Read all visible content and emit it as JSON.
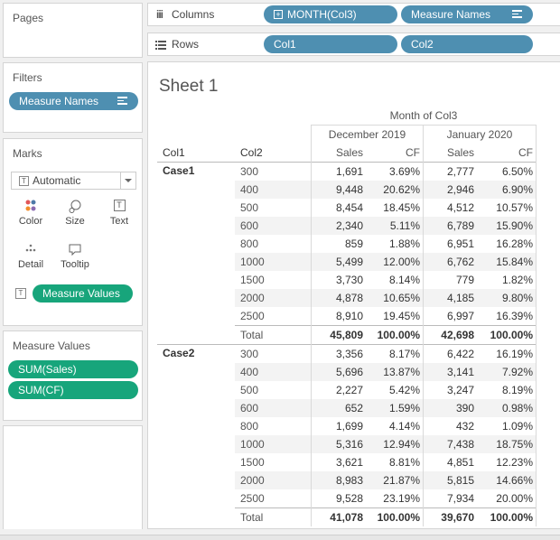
{
  "left": {
    "pages_title": "Pages",
    "filters_title": "Filters",
    "filter_pill": "Measure Names",
    "marks_title": "Marks",
    "mark_type": "Automatic",
    "mark_buttons": [
      "Color",
      "Size",
      "Text",
      "Detail",
      "Tooltip"
    ],
    "marks_pill": "Measure Values",
    "measure_values_title": "Measure Values",
    "measure_pills": [
      "SUM(Sales)",
      "SUM(CF)"
    ]
  },
  "shelves": {
    "columns_label": "Columns",
    "rows_label": "Rows",
    "columns_pills": [
      "MONTH(Col3)",
      "Measure Names"
    ],
    "rows_pills": [
      "Col1",
      "Col2"
    ]
  },
  "sheet": {
    "title": "Sheet 1",
    "col_header_top": "Month of Col3",
    "months": [
      "December 2019",
      "January 2020"
    ],
    "row_headers": [
      "Col1",
      "Col2"
    ],
    "measure_headers": [
      "Sales",
      "CF",
      "Sales",
      "CF"
    ],
    "groups": [
      {
        "name": "Case1",
        "rows": [
          [
            "300",
            "1,691",
            "3.69%",
            "2,777",
            "6.50%"
          ],
          [
            "400",
            "9,448",
            "20.62%",
            "2,946",
            "6.90%"
          ],
          [
            "500",
            "8,454",
            "18.45%",
            "4,512",
            "10.57%"
          ],
          [
            "600",
            "2,340",
            "5.11%",
            "6,789",
            "15.90%"
          ],
          [
            "800",
            "859",
            "1.88%",
            "6,951",
            "16.28%"
          ],
          [
            "1000",
            "5,499",
            "12.00%",
            "6,762",
            "15.84%"
          ],
          [
            "1500",
            "3,730",
            "8.14%",
            "779",
            "1.82%"
          ],
          [
            "2000",
            "4,878",
            "10.65%",
            "4,185",
            "9.80%"
          ],
          [
            "2500",
            "8,910",
            "19.45%",
            "6,997",
            "16.39%"
          ]
        ],
        "total": [
          "Total",
          "45,809",
          "100.00%",
          "42,698",
          "100.00%"
        ]
      },
      {
        "name": "Case2",
        "rows": [
          [
            "300",
            "3,356",
            "8.17%",
            "6,422",
            "16.19%"
          ],
          [
            "400",
            "5,696",
            "13.87%",
            "3,141",
            "7.92%"
          ],
          [
            "500",
            "2,227",
            "5.42%",
            "3,247",
            "8.19%"
          ],
          [
            "600",
            "652",
            "1.59%",
            "390",
            "0.98%"
          ],
          [
            "800",
            "1,699",
            "4.14%",
            "432",
            "1.09%"
          ],
          [
            "1000",
            "5,316",
            "12.94%",
            "7,438",
            "18.75%"
          ],
          [
            "1500",
            "3,621",
            "8.81%",
            "4,851",
            "12.23%"
          ],
          [
            "2000",
            "8,983",
            "21.87%",
            "5,815",
            "14.66%"
          ],
          [
            "2500",
            "9,528",
            "23.19%",
            "7,934",
            "20.00%"
          ]
        ],
        "total": [
          "Total",
          "41,078",
          "100.00%",
          "39,670",
          "100.00%"
        ]
      }
    ]
  },
  "colors": {
    "dimension_pill": "#4e8fb1",
    "measure_pill": "#17a57b"
  }
}
